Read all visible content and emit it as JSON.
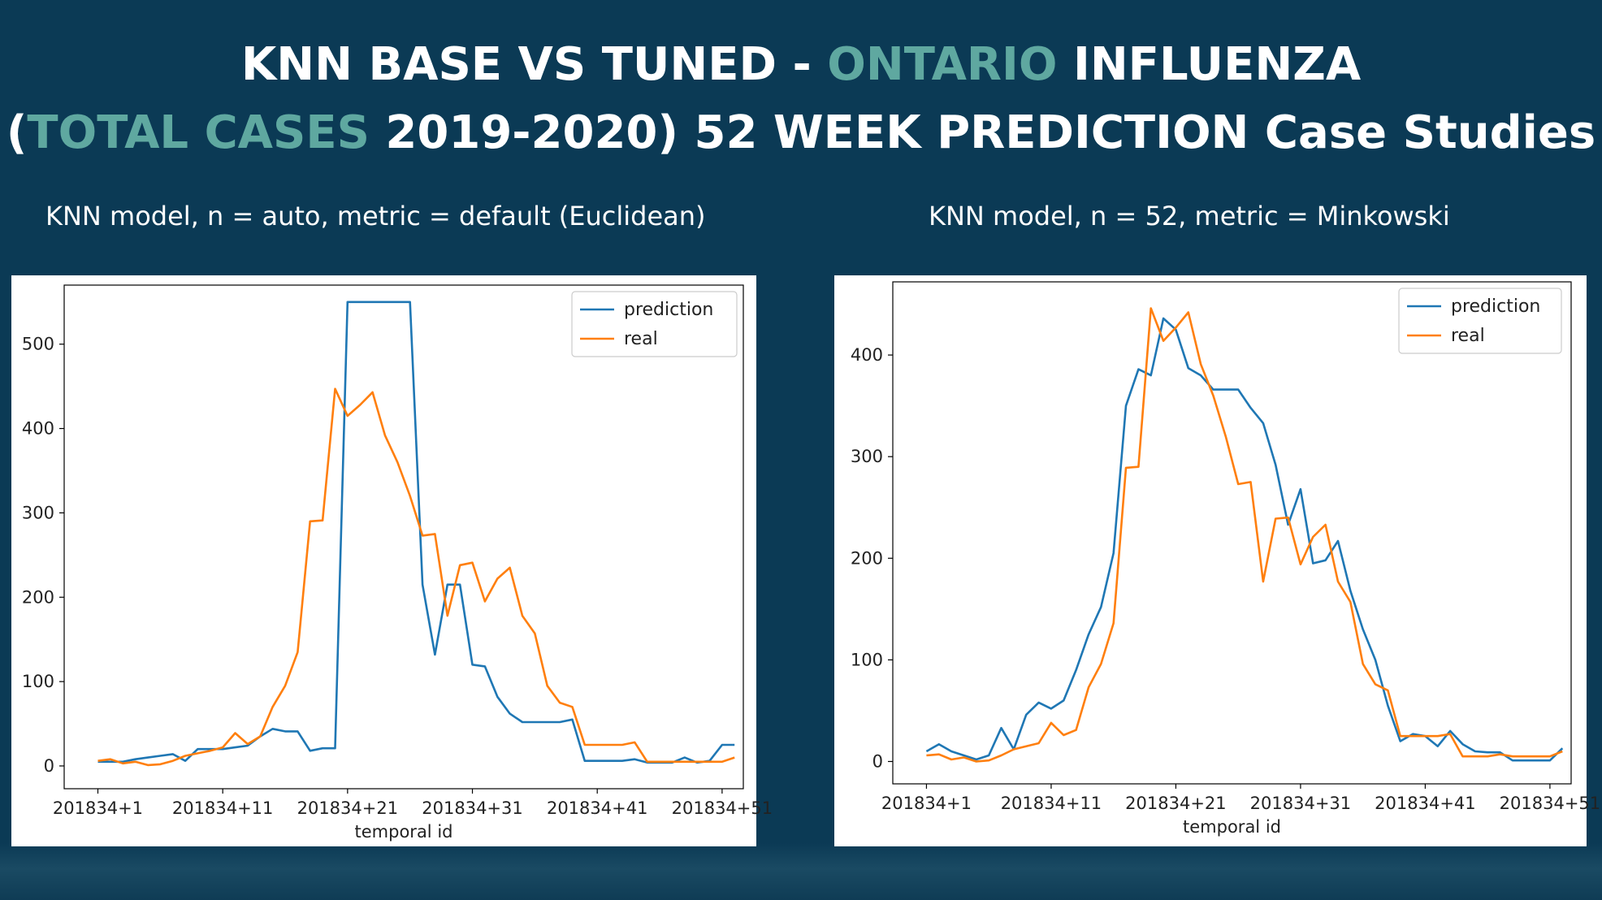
{
  "title": {
    "line1_part1": "KNN BASE VS TUNED - ",
    "line1_highlight": "ONTARIO",
    "line1_part2": " INFLUENZA",
    "line2_part1": "(",
    "line2_highlight": "TOTAL CASES",
    "line2_part2": " 2019-2020) 52 WEEK PREDICTION Case Studies"
  },
  "colors": {
    "background": "#0b3a55",
    "highlight": "#5fa8a0",
    "prediction": "#1f77b4",
    "real": "#ff7f0e"
  },
  "chart_data": [
    {
      "type": "line",
      "subtitle": "KNN model, n = auto, metric = default (Euclidean)",
      "xlabel": "temporal id",
      "ylabel": "",
      "x_ticks": [
        "201834+1",
        "201834+11",
        "201834+21",
        "201834+31",
        "201834+41",
        "201834+51"
      ],
      "y_ticks": [
        0,
        100,
        200,
        300,
        400,
        500
      ],
      "xlim": [
        -1.7,
        52.7
      ],
      "ylim": [
        -27,
        570
      ],
      "legend": "top-right",
      "grid": false,
      "x": [
        1,
        2,
        3,
        4,
        5,
        6,
        7,
        8,
        9,
        10,
        11,
        12,
        13,
        14,
        15,
        16,
        17,
        18,
        19,
        20,
        21,
        22,
        23,
        24,
        25,
        26,
        27,
        28,
        29,
        30,
        31,
        32,
        33,
        34,
        35,
        36,
        37,
        38,
        39,
        40,
        41,
        42,
        43,
        44,
        45,
        46,
        47,
        48,
        49,
        50,
        51,
        52
      ],
      "series": [
        {
          "name": "prediction",
          "values": [
            5,
            5,
            5,
            8,
            10,
            12,
            14,
            6,
            20,
            20,
            20,
            22,
            24,
            35,
            44,
            41,
            41,
            18,
            21,
            21,
            550,
            550,
            550,
            550,
            550,
            550,
            215,
            132,
            215,
            215,
            120,
            118,
            82,
            62,
            52,
            52,
            52,
            52,
            55,
            6,
            6,
            6,
            6,
            8,
            4,
            4,
            4,
            10,
            4,
            6,
            25,
            25
          ]
        },
        {
          "name": "real",
          "values": [
            6,
            8,
            3,
            5,
            1,
            2,
            6,
            12,
            15,
            18,
            22,
            39,
            26,
            35,
            70,
            95,
            135,
            290,
            291,
            447,
            415,
            428,
            443,
            392,
            360,
            320,
            273,
            275,
            178,
            238,
            241,
            195,
            222,
            235,
            178,
            157,
            95,
            75,
            70,
            25,
            25,
            25,
            25,
            28,
            5,
            5,
            5,
            5,
            5,
            5,
            5,
            10
          ]
        }
      ]
    },
    {
      "type": "line",
      "subtitle": "KNN model, n = 52, metric = Minkowski",
      "xlabel": "temporal id",
      "ylabel": "",
      "x_ticks": [
        "201834+1",
        "201834+11",
        "201834+21",
        "201834+31",
        "201834+41",
        "201834+51"
      ],
      "y_ticks": [
        0,
        100,
        200,
        300,
        400
      ],
      "xlim": [
        -1.7,
        52.7
      ],
      "ylim": [
        -22,
        472
      ],
      "legend": "top-right",
      "grid": false,
      "x": [
        1,
        2,
        3,
        4,
        5,
        6,
        7,
        8,
        9,
        10,
        11,
        12,
        13,
        14,
        15,
        16,
        17,
        18,
        19,
        20,
        21,
        22,
        23,
        24,
        25,
        26,
        27,
        28,
        29,
        30,
        31,
        32,
        33,
        34,
        35,
        36,
        37,
        38,
        39,
        40,
        41,
        42,
        43,
        44,
        45,
        46,
        47,
        48,
        49,
        50,
        51,
        52
      ],
      "series": [
        {
          "name": "prediction",
          "values": [
            10,
            17,
            10,
            6,
            2,
            6,
            33,
            12,
            46,
            58,
            52,
            60,
            90,
            125,
            152,
            205,
            350,
            386,
            380,
            436,
            425,
            387,
            380,
            366,
            366,
            366,
            348,
            333,
            292,
            233,
            268,
            195,
            198,
            217,
            168,
            130,
            100,
            55,
            20,
            27,
            25,
            15,
            30,
            17,
            10,
            9,
            9,
            1,
            1,
            1,
            1,
            13
          ]
        },
        {
          "name": "real",
          "values": [
            6,
            7,
            2,
            4,
            0,
            1,
            6,
            12,
            15,
            18,
            38,
            26,
            31,
            73,
            96,
            136,
            289,
            290,
            446,
            414,
            427,
            442,
            391,
            360,
            320,
            273,
            275,
            177,
            239,
            240,
            194,
            221,
            233,
            177,
            157,
            96,
            76,
            70,
            25,
            25,
            25,
            25,
            27,
            5,
            5,
            5,
            7,
            5,
            5,
            5,
            5,
            10
          ]
        }
      ]
    }
  ]
}
